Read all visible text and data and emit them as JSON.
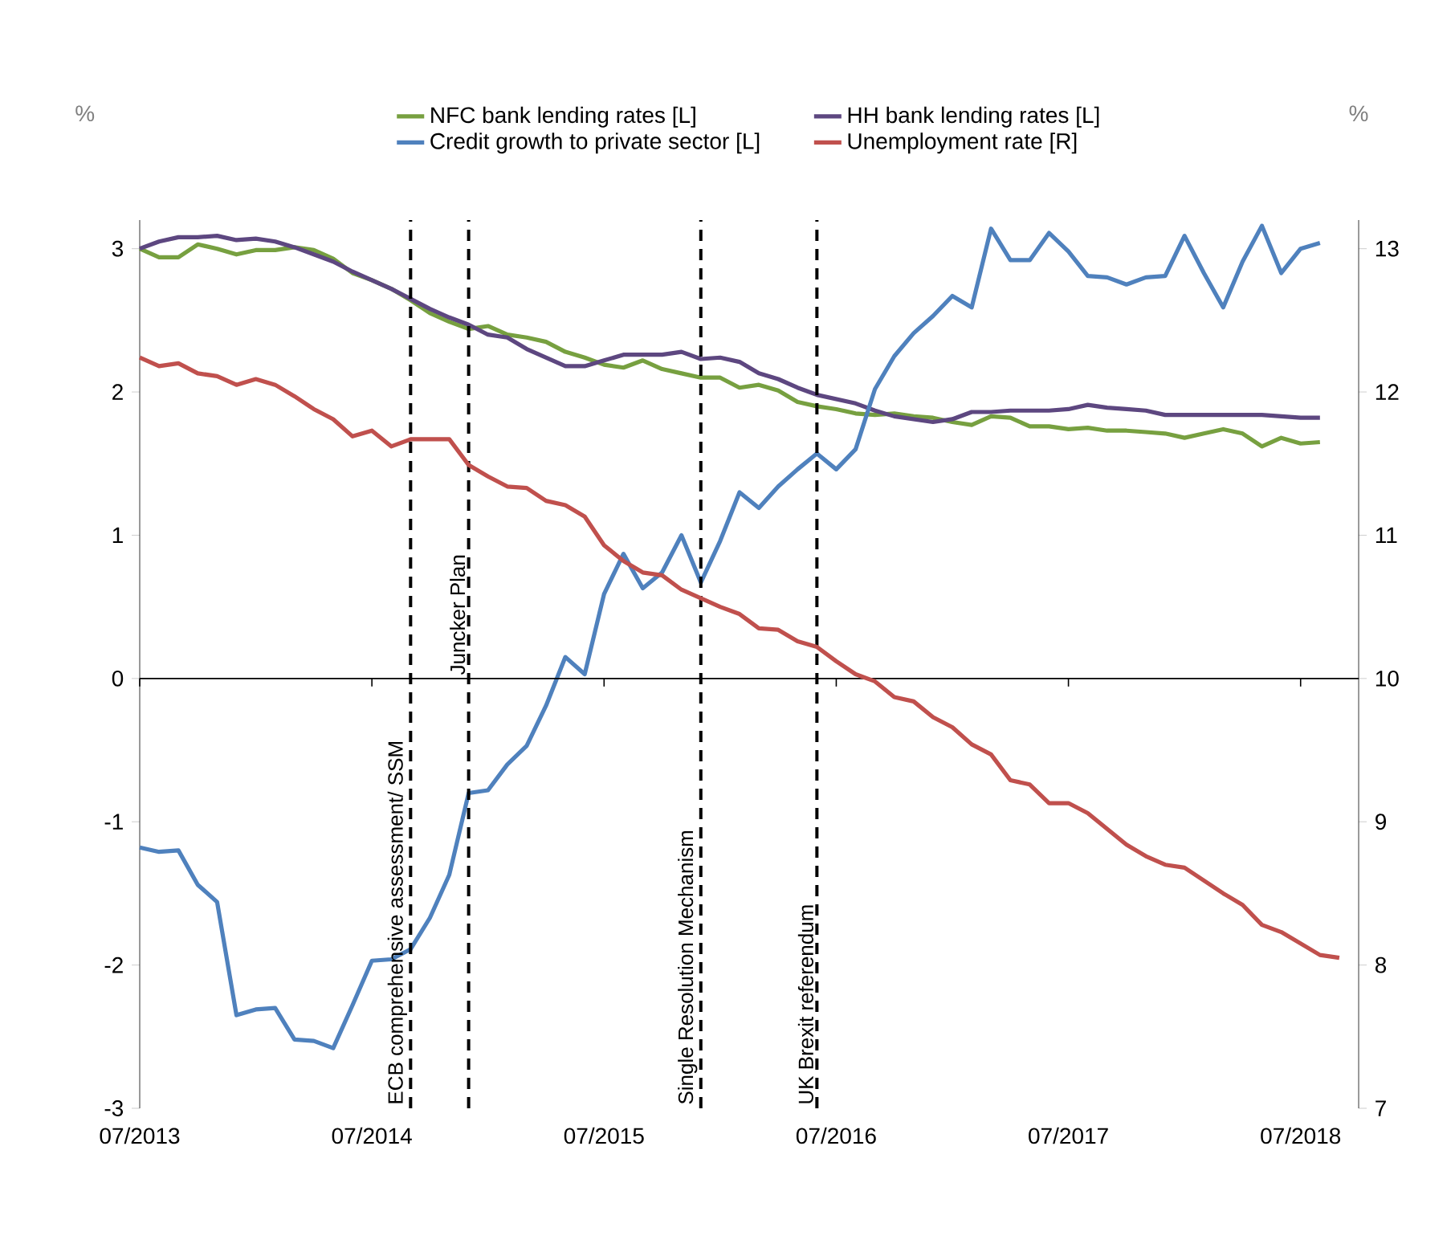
{
  "chart_data": {
    "type": "line",
    "ylabel": "%",
    "y2label": "%",
    "x": [
      "2013-07",
      "2013-08",
      "2013-09",
      "2013-10",
      "2013-11",
      "2013-12",
      "2014-01",
      "2014-02",
      "2014-03",
      "2014-04",
      "2014-05",
      "2014-06",
      "2014-07",
      "2014-08",
      "2014-09",
      "2014-10",
      "2014-11",
      "2014-12",
      "2015-01",
      "2015-02",
      "2015-03",
      "2015-04",
      "2015-05",
      "2015-06",
      "2015-07",
      "2015-08",
      "2015-09",
      "2015-10",
      "2015-11",
      "2015-12",
      "2016-01",
      "2016-02",
      "2016-03",
      "2016-04",
      "2016-05",
      "2016-06",
      "2016-07",
      "2016-08",
      "2016-09",
      "2016-10",
      "2016-11",
      "2016-12",
      "2017-01",
      "2017-02",
      "2017-03",
      "2017-04",
      "2017-05",
      "2017-06",
      "2017-07",
      "2017-08",
      "2017-09",
      "2017-10",
      "2017-11",
      "2017-12",
      "2018-01",
      "2018-02",
      "2018-03",
      "2018-04",
      "2018-05",
      "2018-06",
      "2018-07",
      "2018-08",
      "2018-09"
    ],
    "series": [
      {
        "name": "NFC bank lending rates [L]",
        "color": "#77a040",
        "values": [
          3.0,
          2.94,
          2.94,
          3.03,
          3.0,
          2.96,
          2.99,
          2.99,
          3.01,
          2.99,
          2.93,
          2.83,
          2.78,
          2.72,
          2.64,
          2.55,
          2.49,
          2.44,
          2.46,
          2.4,
          2.38,
          2.35,
          2.28,
          2.24,
          2.19,
          2.17,
          2.22,
          2.16,
          2.13,
          2.1,
          2.1,
          2.03,
          2.05,
          2.01,
          1.93,
          1.9,
          1.88,
          1.85,
          1.84,
          1.85,
          1.83,
          1.82,
          1.79,
          1.77,
          1.83,
          1.82,
          1.76,
          1.76,
          1.74,
          1.75,
          1.73,
          1.73,
          1.72,
          1.71,
          1.68,
          1.71,
          1.74,
          1.71,
          1.62,
          1.68,
          1.64,
          1.65,
          null
        ]
      },
      {
        "name": "HH bank lending rates [L]",
        "color": "#5d4780",
        "values": [
          3.0,
          3.05,
          3.08,
          3.08,
          3.09,
          3.06,
          3.07,
          3.05,
          3.01,
          2.96,
          2.91,
          2.84,
          2.78,
          2.72,
          2.65,
          2.58,
          2.52,
          2.47,
          2.4,
          2.38,
          2.3,
          2.24,
          2.18,
          2.18,
          2.22,
          2.26,
          2.26,
          2.26,
          2.28,
          2.23,
          2.24,
          2.21,
          2.13,
          2.09,
          2.03,
          1.98,
          1.95,
          1.92,
          1.87,
          1.83,
          1.81,
          1.79,
          1.81,
          1.86,
          1.86,
          1.87,
          1.87,
          1.87,
          1.88,
          1.91,
          1.89,
          1.88,
          1.87,
          1.84,
          1.84,
          1.84,
          1.84,
          1.84,
          1.84,
          1.83,
          1.82,
          1.82,
          null
        ]
      },
      {
        "name": "Credit growth to private sector [L]",
        "color": "#4f81bd",
        "values": [
          -1.18,
          -1.21,
          -1.2,
          -1.44,
          -1.56,
          -2.35,
          -2.31,
          -2.3,
          -2.52,
          -2.53,
          -2.58,
          -2.28,
          -1.97,
          -1.96,
          -1.89,
          -1.67,
          -1.37,
          -0.8,
          -0.78,
          -0.6,
          -0.47,
          -0.19,
          0.15,
          0.03,
          0.59,
          0.87,
          0.63,
          0.74,
          1.0,
          0.67,
          0.96,
          1.3,
          1.19,
          1.34,
          1.46,
          1.57,
          1.46,
          1.6,
          2.02,
          2.25,
          2.41,
          2.53,
          2.67,
          2.59,
          3.14,
          2.92,
          2.92,
          3.11,
          2.98,
          2.81,
          2.8,
          2.75,
          2.8,
          2.81,
          3.09,
          2.83,
          2.59,
          2.91,
          3.16,
          2.83,
          3.0,
          3.04,
          null
        ]
      },
      {
        "name": "Unemployment rate [R]",
        "color": "#c0504d",
        "axis": "y2",
        "values": [
          12.24,
          12.18,
          12.2,
          12.13,
          12.11,
          12.05,
          12.09,
          12.05,
          11.97,
          11.88,
          11.81,
          11.69,
          11.73,
          11.62,
          11.67,
          11.67,
          11.67,
          11.49,
          11.41,
          11.34,
          11.33,
          11.24,
          11.21,
          11.13,
          10.93,
          10.82,
          10.74,
          10.72,
          10.62,
          10.56,
          10.5,
          10.45,
          10.35,
          10.34,
          10.26,
          10.22,
          10.12,
          10.03,
          9.98,
          9.87,
          9.84,
          9.73,
          9.66,
          9.54,
          9.47,
          9.29,
          9.26,
          9.13,
          9.13,
          9.06,
          8.95,
          8.84,
          8.76,
          8.7,
          8.68,
          8.59,
          8.5,
          8.42,
          8.28,
          8.23,
          8.15,
          8.07,
          8.05
        ]
      }
    ],
    "xlim": [
      "2013-07",
      "2018-10"
    ],
    "xticks": [
      {
        "value": "2013-07",
        "label": "07/2013"
      },
      {
        "value": "2014-07",
        "label": "07/2014"
      },
      {
        "value": "2015-07",
        "label": "07/2015"
      },
      {
        "value": "2016-07",
        "label": "07/2016"
      },
      {
        "value": "2017-07",
        "label": "07/2017"
      },
      {
        "value": "2018-07",
        "label": "07/2018"
      }
    ],
    "ylim": [
      -3,
      3.2
    ],
    "yticks": [
      -3,
      -2,
      -1,
      0,
      1,
      2,
      3
    ],
    "y2lim": [
      7,
      13.2
    ],
    "y2ticks": [
      7,
      8,
      9,
      10,
      11,
      12,
      13
    ],
    "ref_lines": [
      {
        "axis": "x",
        "value": "2014-09",
        "label": "ECB comprehensive assessment/ SSM",
        "color": "#000000",
        "line_style": "dashed"
      },
      {
        "axis": "x",
        "value": "2014-12",
        "label": "Juncker Plan",
        "color": "#000000",
        "line_style": "dashed"
      },
      {
        "axis": "x",
        "value": "2015-12",
        "label": "Single Resolution Mechanism",
        "color": "#000000",
        "line_style": "dashed"
      },
      {
        "axis": "x",
        "value": "2016-06",
        "label": "UK Brexit referendum",
        "color": "#000000",
        "line_style": "dashed"
      }
    ],
    "legend": "top",
    "line_style": "solid",
    "marker": "none"
  }
}
